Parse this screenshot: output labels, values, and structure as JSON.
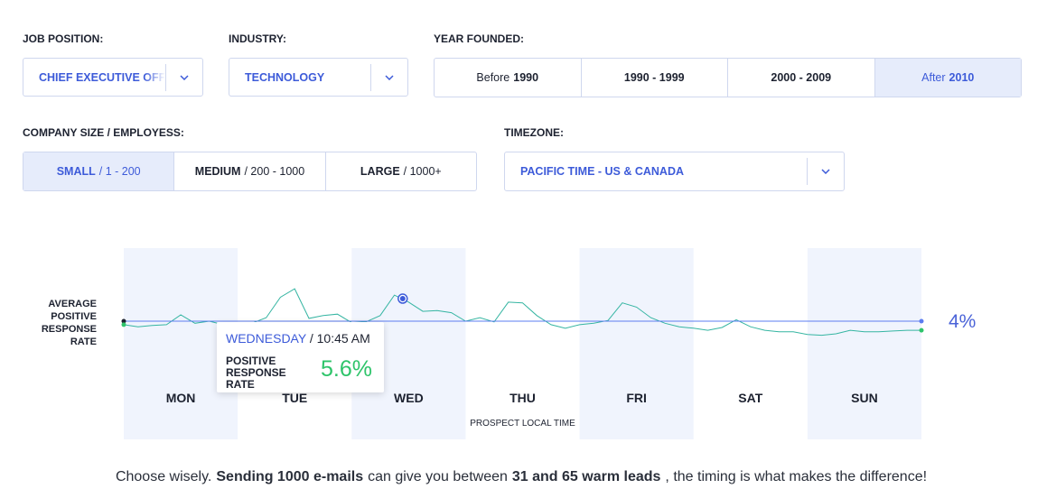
{
  "filters": {
    "job_position": {
      "label": "JOB POSITION:",
      "value": "CHIEF EXECUTIVE OFFI"
    },
    "industry": {
      "label": "INDUSTRY:",
      "value": "TECHNOLOGY"
    },
    "year_founded": {
      "label": "YEAR FOUNDED:",
      "selected": 3,
      "options": [
        {
          "light": "Before",
          "bold": "1990"
        },
        {
          "light": "",
          "bold": "1990 - 1999"
        },
        {
          "light": "",
          "bold": "2000 - 2009"
        },
        {
          "light": "After",
          "bold": "2010"
        }
      ]
    },
    "company_size": {
      "label": "COMPANY SIZE / EMPLOYESS:",
      "selected": 0,
      "options": [
        {
          "bold": "SMALL",
          "light": "/ 1 - 200"
        },
        {
          "bold": "MEDIUM",
          "light": "/ 200 - 1000"
        },
        {
          "bold": "LARGE",
          "light": "/ 1000+"
        }
      ]
    },
    "timezone": {
      "label": "TIMEZONE:",
      "value": "PACIFIC TIME - US & CANADA"
    }
  },
  "chart_data": {
    "type": "line",
    "y_label": "AVERAGE POSITIVE RESPONSE RATE",
    "x_label": "PROSPECT LOCAL TIME",
    "days": [
      "MON",
      "TUE",
      "WED",
      "THU",
      "FRI",
      "SAT",
      "SUN"
    ],
    "xlim": [
      0,
      168
    ],
    "ylim": [
      0,
      8
    ],
    "average": {
      "value": 4,
      "label": "4%"
    },
    "series": [
      {
        "color": "#35b5a2",
        "x": [
          0,
          3,
          6,
          9,
          12,
          15,
          18,
          21,
          24,
          27,
          30,
          33,
          36,
          39,
          42,
          45,
          48,
          51,
          54,
          57,
          60,
          63,
          66,
          69,
          72,
          75,
          78,
          81,
          84,
          87,
          90,
          93,
          96,
          99,
          102,
          105,
          108,
          111,
          114,
          117,
          120,
          123,
          126,
          129,
          132,
          135,
          138,
          141,
          144,
          147,
          150,
          153,
          156,
          159,
          162,
          165,
          168
        ],
        "values": [
          3.75,
          3.6,
          3.7,
          3.75,
          4.45,
          3.85,
          4.0,
          3.75,
          3.75,
          3.85,
          4.25,
          5.7,
          6.3,
          4.2,
          4.4,
          4.5,
          3.9,
          3.95,
          4.4,
          5.85,
          5.35,
          4.7,
          4.75,
          4.6,
          4.0,
          4.25,
          3.95,
          5.35,
          5.3,
          4.4,
          3.75,
          3.5,
          3.75,
          3.85,
          4.05,
          5.3,
          5.0,
          4.25,
          3.85,
          3.6,
          3.5,
          3.35,
          3.55,
          4.1,
          3.6,
          3.35,
          3.25,
          3.25,
          3.05,
          3.0,
          3.1,
          3.35,
          3.25,
          3.25,
          3.3,
          3.35,
          3.35
        ]
      }
    ],
    "tooltip": {
      "day": "WEDNESDAY",
      "time": "/ 10:45 AM",
      "label": "POSITIVE RESPONSE RATE",
      "x": 58.75,
      "value": 5.6,
      "value_label": "5.6%"
    }
  },
  "footer": {
    "segments": [
      {
        "text": "Choose wisely.",
        "bold": false
      },
      {
        "text": "Sending 1000 e-mails",
        "bold": true
      },
      {
        "text": "can give you between",
        "bold": false
      },
      {
        "text": "31 and 65 warm leads",
        "bold": true
      },
      {
        "text": ", the timing is what makes the difference!",
        "bold": false
      }
    ]
  }
}
